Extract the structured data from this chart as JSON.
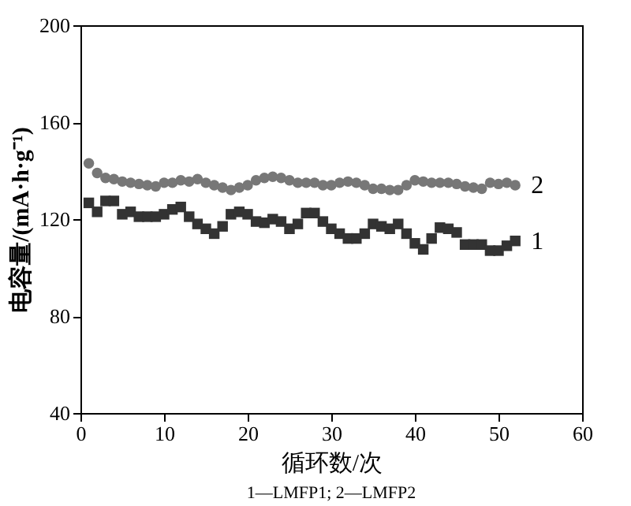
{
  "chart_data": {
    "type": "scatter",
    "xlabel": "循环数/次",
    "ylabel": "电容量/(mA·h·g⁻¹)",
    "xlim": [
      0,
      60
    ],
    "xticks": [
      0,
      10,
      20,
      30,
      40,
      50,
      60
    ],
    "ylim": [
      40,
      200
    ],
    "yticks": [
      40,
      80,
      120,
      160,
      200
    ],
    "grid": false,
    "legend": false,
    "x": [
      1,
      2,
      3,
      4,
      5,
      6,
      7,
      8,
      9,
      10,
      11,
      12,
      13,
      14,
      15,
      16,
      17,
      18,
      19,
      20,
      21,
      22,
      23,
      24,
      25,
      26,
      27,
      28,
      29,
      30,
      31,
      32,
      33,
      34,
      35,
      36,
      37,
      38,
      39,
      40,
      41,
      42,
      43,
      44,
      45,
      46,
      47,
      48,
      49,
      50,
      51,
      52
    ],
    "series": [
      {
        "name": "1",
        "color": "#333333",
        "marker": "square",
        "values": [
          126.7,
          123,
          127.5,
          127.5,
          122,
          123,
          121,
          121,
          121,
          122,
          124,
          125,
          121,
          118,
          116,
          114,
          117,
          122,
          123,
          122,
          119,
          118.5,
          120,
          119,
          116,
          118,
          122.5,
          122.5,
          119,
          116,
          114,
          112,
          112,
          114,
          118,
          117,
          116,
          118,
          114,
          110,
          107.5,
          112,
          116.5,
          116,
          114.5,
          109.5,
          109.5,
          109.5,
          107,
          107,
          109,
          111
        ]
      },
      {
        "name": "2",
        "color": "#777777",
        "marker": "circle",
        "values": [
          143,
          139,
          137,
          136.5,
          135.5,
          135,
          134.5,
          134,
          133.5,
          135,
          135,
          136,
          135.5,
          136.5,
          135,
          134,
          133,
          132,
          133,
          134,
          136,
          137,
          137.5,
          137,
          136,
          135,
          135,
          135,
          134,
          134,
          135,
          135.5,
          135,
          134,
          132.5,
          132.5,
          132,
          132,
          134,
          136,
          135.5,
          135,
          135,
          135,
          134.5,
          133.5,
          133,
          132.5,
          135,
          134.5,
          135,
          134
        ]
      }
    ],
    "annotations": [
      "1—LMFP1; 2—LMFP2"
    ]
  }
}
